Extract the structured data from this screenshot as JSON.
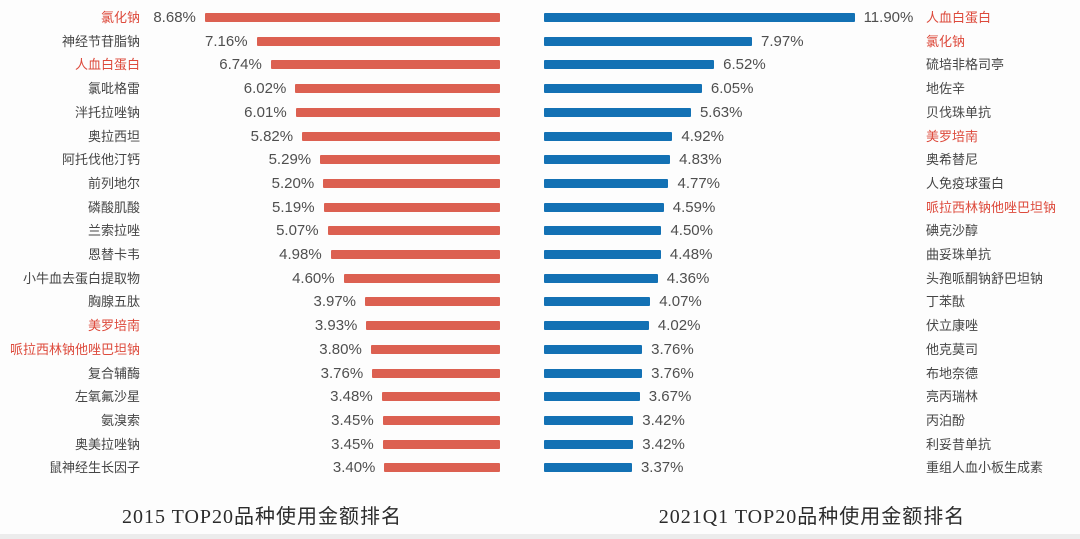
{
  "colors": {
    "red_bar": "#DC6051",
    "blue_bar": "#1371B4",
    "highlight_text": "#DD4A3C",
    "label_text": "#454545",
    "value_text": "#4F4F4F",
    "caption_text": "#2B2B2B"
  },
  "chart_data": [
    {
      "type": "bar",
      "orientation": "horizontal",
      "bar_anchor": "right",
      "title": "2015 TOP20品种使用金额排名",
      "unit": "%",
      "xlim": [
        0,
        9
      ],
      "bar_color": "#DC6051",
      "legend": "none",
      "grid": false,
      "categories": [
        "氯化钠",
        "神经节苷脂钠",
        "人血白蛋白",
        "氯吡格雷",
        "泮托拉唑钠",
        "奥拉西坦",
        "阿托伐他汀钙",
        "前列地尔",
        "磷酸肌酸",
        "兰索拉唑",
        "恩替卡韦",
        "小牛血去蛋白提取物",
        "胸腺五肽",
        "美罗培南",
        "哌拉西林钠他唑巴坦钠",
        "复合辅酶",
        "左氧氟沙星",
        "氨溴索",
        "奥美拉唑钠",
        "鼠神经生长因子"
      ],
      "values": [
        8.68,
        7.16,
        6.74,
        6.02,
        6.01,
        5.82,
        5.29,
        5.2,
        5.19,
        5.07,
        4.98,
        4.6,
        3.97,
        3.93,
        3.8,
        3.76,
        3.48,
        3.45,
        3.45,
        3.4
      ],
      "value_labels": [
        "8.68%",
        "7.16%",
        "6.74%",
        "6.02%",
        "6.01%",
        "5.82%",
        "5.29%",
        "5.20%",
        "5.19%",
        "5.07%",
        "4.98%",
        "4.60%",
        "3.97%",
        "3.93%",
        "3.80%",
        "3.76%",
        "3.48%",
        "3.45%",
        "3.45%",
        "3.40%"
      ],
      "highlighted": [
        true,
        false,
        true,
        false,
        false,
        false,
        false,
        false,
        false,
        false,
        false,
        false,
        false,
        true,
        true,
        false,
        false,
        false,
        false,
        false
      ]
    },
    {
      "type": "bar",
      "orientation": "horizontal",
      "bar_anchor": "left",
      "title": "2021Q1 TOP20品种使用金额排名",
      "unit": "%",
      "xlim": [
        0,
        12.5
      ],
      "bar_color": "#1371B4",
      "legend": "none",
      "grid": false,
      "categories": [
        "人血白蛋白",
        "氯化钠",
        "硫培非格司亭",
        "地佐辛",
        "贝伐珠单抗",
        "美罗培南",
        "奥希替尼",
        "人免疫球蛋白",
        "哌拉西林钠他唑巴坦钠",
        "碘克沙醇",
        "曲妥珠单抗",
        "头孢哌酮钠舒巴坦钠",
        "丁苯酞",
        "伏立康唑",
        "他克莫司",
        "布地奈德",
        "亮丙瑞林",
        "丙泊酚",
        "利妥昔单抗",
        "重组人血小板生成素"
      ],
      "values": [
        11.9,
        7.97,
        6.52,
        6.05,
        5.63,
        4.92,
        4.83,
        4.77,
        4.59,
        4.5,
        4.48,
        4.36,
        4.07,
        4.02,
        3.76,
        3.76,
        3.67,
        3.42,
        3.42,
        3.37
      ],
      "value_labels": [
        "11.90%",
        "7.97%",
        "6.52%",
        "6.05%",
        "5.63%",
        "4.92%",
        "4.83%",
        "4.77%",
        "4.59%",
        "4.50%",
        "4.48%",
        "4.36%",
        "4.07%",
        "4.02%",
        "3.76%",
        "3.76%",
        "3.67%",
        "3.42%",
        "3.42%",
        "3.37%"
      ],
      "highlighted": [
        true,
        true,
        false,
        false,
        false,
        true,
        false,
        false,
        true,
        false,
        false,
        false,
        false,
        false,
        false,
        false,
        false,
        false,
        false,
        false
      ]
    }
  ]
}
